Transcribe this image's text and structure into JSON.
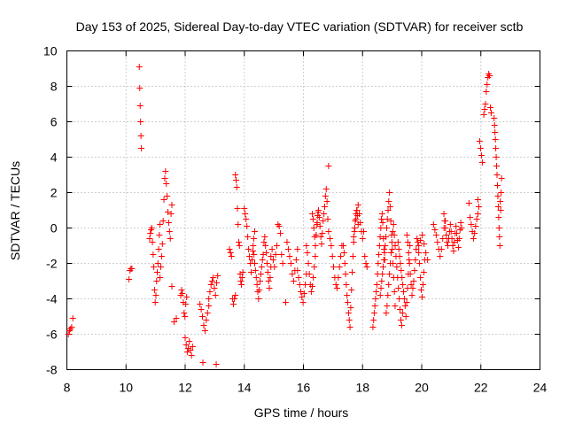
{
  "chart_data": {
    "type": "scatter",
    "title": "Day 153 of 2025, Sidereal Day-to-day VTEC variation (SDTVAR) for receiver sctb",
    "xlabel": "GPS time / hours",
    "ylabel": "SDTVAR / TECUs",
    "xlim": [
      8,
      24
    ],
    "ylim": [
      -8,
      10
    ],
    "xticks": [
      8,
      10,
      12,
      14,
      16,
      18,
      20,
      22,
      24
    ],
    "yticks": [
      -8,
      -6,
      -4,
      -2,
      0,
      2,
      4,
      6,
      8,
      10
    ],
    "grid": true,
    "marker": "plus",
    "marker_color": "#ff0000",
    "series": [
      {
        "name": "sctb",
        "segments": [
          {
            "start": 8.05,
            "end": 8.2,
            "values": [
              -6.0,
              -5.8,
              -5.7,
              -5.6,
              -5.1
            ]
          },
          {
            "start": 10.1,
            "end": 10.2,
            "values": [
              -2.9,
              -2.4,
              -2.3,
              -2.3
            ]
          },
          {
            "start": 10.45,
            "end": 10.52,
            "values": [
              9.1,
              7.9,
              6.9,
              6.0,
              5.2,
              4.5
            ]
          },
          {
            "start": 10.8,
            "end": 11.15,
            "values": [
              -0.6,
              -0.3,
              -0.1,
              0.0,
              -0.8,
              -1.5,
              -2.2,
              -3.5,
              -4.2,
              -3.8,
              -3.0,
              -2.5,
              -2.0,
              -1.2,
              -0.4,
              0.2
            ]
          },
          {
            "start": 11.15,
            "end": 11.55,
            "values": [
              -2.8,
              -2.2,
              -1.6,
              -0.9,
              0.4,
              1.6,
              2.8,
              3.2,
              2.5,
              1.8,
              0.9,
              0.3,
              -0.2,
              -0.6,
              0.8,
              1.3
            ]
          },
          {
            "start": 11.55,
            "end": 11.7,
            "values": [
              -3.3,
              -5.3,
              -5.1
            ]
          },
          {
            "start": 11.85,
            "end": 12.05,
            "values": [
              -3.8,
              -3.5,
              -3.7,
              -4.2,
              -4.8,
              -5.0,
              -4.3,
              -3.9
            ]
          },
          {
            "start": 12.0,
            "end": 12.25,
            "values": [
              -6.2,
              -6.6,
              -7.0,
              -6.8,
              -6.4,
              -6.9,
              -7.2,
              -6.7
            ]
          },
          {
            "start": 12.5,
            "end": 12.8,
            "values": [
              -4.3,
              -4.6,
              -5.0,
              -5.5,
              -5.8,
              -5.2,
              -4.8,
              -4.4
            ]
          },
          {
            "start": 12.6,
            "end": 12.7,
            "values": [
              -7.6
            ]
          },
          {
            "start": 13.05,
            "end": 13.1,
            "values": [
              -7.7
            ]
          },
          {
            "start": 12.8,
            "end": 13.1,
            "values": [
              -4.0,
              -3.6,
              -3.2,
              -3.0,
              -2.8,
              -3.4,
              -3.8,
              -3.1,
              -2.7
            ]
          },
          {
            "start": 13.5,
            "end": 13.7,
            "values": [
              -1.2,
              -1.4,
              -1.6,
              -4.0,
              -4.3,
              -4.0,
              -3.8
            ]
          },
          {
            "start": 13.7,
            "end": 13.95,
            "values": [
              3.0,
              2.7,
              2.3,
              1.1,
              0.2,
              -0.8,
              -1.0,
              -2.6,
              -3.0,
              -3.2,
              -2.8,
              -2.5
            ]
          },
          {
            "start": 14.0,
            "end": 14.35,
            "values": [
              1.1,
              0.8,
              0.5,
              0.1,
              -0.5,
              -1.2,
              -1.6,
              -2.0,
              -2.5,
              -1.8,
              -1.3,
              -0.6,
              -0.2
            ]
          },
          {
            "start": 14.3,
            "end": 14.9,
            "values": [
              -1.0,
              -1.5,
              -2.0,
              -2.4,
              -2.8,
              -3.2,
              -3.6,
              -4.0,
              -3.5,
              -3.0,
              -2.6,
              -2.2,
              -1.8,
              -1.5,
              -0.8,
              -0.5,
              -1.0,
              -1.4,
              -2.0,
              -2.5,
              -3.0,
              -3.4,
              -2.8,
              -2.2
            ]
          },
          {
            "start": 14.9,
            "end": 15.3,
            "values": [
              -1.6,
              -1.2,
              -1.8,
              -2.2,
              -1.5,
              -1.0,
              0.2,
              0.1,
              -0.3,
              -1.5,
              -2.0
            ]
          },
          {
            "start": 15.4,
            "end": 15.8,
            "values": [
              -4.2,
              -0.8,
              -1.2,
              -1.6,
              -2.0,
              -2.6,
              -3.0,
              -2.4,
              -1.8,
              -1.2
            ]
          },
          {
            "start": 15.8,
            "end": 16.1,
            "values": [
              -2.4,
              -2.8,
              -3.2,
              -3.6,
              -3.9,
              -4.2,
              -3.7,
              -3.2,
              -2.6
            ]
          },
          {
            "start": 16.1,
            "end": 16.5,
            "values": [
              -1.0,
              -1.4,
              -2.0,
              -2.6,
              -3.2,
              -3.6,
              -3.3,
              -2.8,
              -2.2,
              -1.6,
              -0.4,
              0.3,
              0.9
            ]
          },
          {
            "start": 16.3,
            "end": 16.85,
            "values": [
              0.8,
              0.5,
              0.0,
              -0.5,
              -1.0,
              -0.4,
              0.2,
              0.7,
              1.0,
              0.6,
              0.1,
              -0.5,
              -0.9,
              -0.3,
              0.4,
              0.8,
              1.2,
              1.8,
              2.2,
              1.5,
              0.5,
              -0.2
            ]
          },
          {
            "start": 16.85,
            "end": 16.9,
            "values": [
              3.5
            ]
          },
          {
            "start": 16.9,
            "end": 17.3,
            "values": [
              -0.6,
              -1.0,
              -1.6,
              -2.2,
              -2.8,
              -3.2,
              -3.4,
              -2.8,
              -2.2,
              -1.6,
              -1.0
            ]
          },
          {
            "start": 17.35,
            "end": 17.85,
            "values": [
              -1.0,
              -1.4,
              -2.0,
              -2.6,
              -3.2,
              -3.8,
              -4.2,
              -4.8,
              -5.2,
              -5.6,
              -4.5,
              -3.5,
              -2.5,
              -1.6,
              -0.8,
              -0.2,
              0.4,
              0.8,
              1.0,
              0.7,
              0.2
            ]
          },
          {
            "start": 17.7,
            "end": 18.15,
            "values": [
              -0.5,
              0.0,
              0.5,
              1.0,
              1.3,
              0.8,
              0.3,
              -0.2,
              -0.6,
              -0.2,
              -1.6,
              -2.0,
              -2.2
            ]
          },
          {
            "start": 18.35,
            "end": 18.75,
            "values": [
              -5.6,
              -5.2,
              -4.8,
              -4.4,
              -4.0,
              -3.6,
              -3.2,
              -2.6,
              -2.0,
              -1.5,
              -1.0,
              -0.5,
              0.0,
              0.5,
              0.8,
              0.3,
              -0.6,
              -1.2,
              -1.8
            ]
          },
          {
            "start": 18.6,
            "end": 19.1,
            "values": [
              -3.8,
              -3.4,
              -3.0,
              -2.6,
              -2.2,
              -1.8,
              -1.4,
              -1.0,
              -0.5,
              0.0,
              0.5,
              1.0,
              1.5,
              2.0,
              1.2,
              0.4,
              -0.4,
              -1.2,
              -2.0,
              -2.8,
              -3.6,
              -4.4
            ]
          },
          {
            "start": 18.8,
            "end": 19.35,
            "values": [
              -4.8,
              -4.4,
              -3.8,
              -3.2,
              -2.6,
              -2.0,
              -1.4,
              -0.8,
              -0.2,
              0.2,
              -0.4,
              -1.0,
              -1.6,
              -2.2,
              -2.8,
              -3.4,
              -4.0,
              -4.6,
              -5.2,
              -5.5,
              -4.8
            ]
          },
          {
            "start": 19.2,
            "end": 19.6,
            "values": [
              -0.8,
              -1.2,
              -1.6,
              -2.0,
              -2.4,
              -2.8,
              -3.2,
              -3.6,
              -4.0,
              -4.4,
              -5.0,
              -4.2,
              -3.4,
              -2.6,
              -1.8,
              -1.0
            ]
          },
          {
            "start": 19.5,
            "end": 20.1,
            "values": [
              -0.4,
              -0.8,
              -1.4,
              -2.0,
              -2.6,
              -3.2,
              -3.8,
              -3.4,
              -3.0,
              -2.4,
              -1.8,
              -1.2,
              -0.6,
              -0.8,
              -1.4,
              -2.0,
              -2.8,
              -3.5,
              -3.9,
              -3.2,
              -2.5,
              -1.8
            ]
          },
          {
            "start": 19.9,
            "end": 20.2,
            "values": [
              -1.0,
              -0.7,
              -0.4,
              -0.9,
              -1.4,
              -1.8
            ]
          },
          {
            "start": 20.4,
            "end": 20.8,
            "values": [
              0.2,
              -0.1,
              -0.4,
              -0.8,
              -1.2,
              -1.6,
              -1.2,
              -0.6,
              0.0,
              0.4
            ]
          },
          {
            "start": 20.75,
            "end": 21.35,
            "values": [
              0.8,
              0.4,
              0.0,
              -0.4,
              -0.8,
              -1.0,
              -0.6,
              -0.2,
              0.2,
              -0.2,
              -0.6,
              -1.0,
              -1.3,
              -0.8,
              -0.3,
              0.1,
              -0.3,
              -0.7,
              -1.1,
              -0.6,
              -0.1,
              0.3,
              0.0
            ]
          },
          {
            "start": 21.6,
            "end": 21.9,
            "values": [
              1.4,
              0.6,
              0.2,
              -0.2,
              -0.6,
              -0.3,
              0.1,
              0.5,
              0.8
            ]
          },
          {
            "start": 21.9,
            "end": 22.05,
            "values": [
              1.6,
              1.2,
              4.9,
              4.5,
              4.1,
              3.7
            ]
          },
          {
            "start": 22.1,
            "end": 22.35,
            "values": [
              6.4,
              6.7,
              7.0,
              7.7,
              8.1,
              8.5,
              8.7,
              8.6,
              6.8,
              6.5
            ]
          },
          {
            "start": 22.45,
            "end": 22.7,
            "values": [
              6.2,
              5.8,
              5.4,
              5.0,
              4.5,
              4.0,
              3.5,
              3.0,
              2.4,
              1.8,
              1.2,
              0.6,
              0.0,
              -0.5,
              -1.0,
              1.5,
              1.0,
              2.0,
              2.8
            ]
          }
        ]
      }
    ]
  }
}
